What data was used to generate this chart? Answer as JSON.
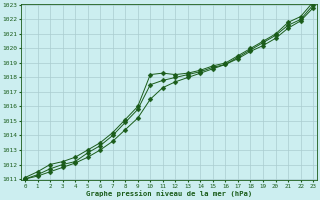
{
  "xlabel": "Graphe pression niveau de la mer (hPa)",
  "ylim": [
    1011,
    1023
  ],
  "xlim": [
    0,
    23
  ],
  "yticks": [
    1011,
    1012,
    1013,
    1014,
    1015,
    1016,
    1017,
    1018,
    1019,
    1020,
    1021,
    1022,
    1023
  ],
  "xticks": [
    0,
    1,
    2,
    3,
    4,
    5,
    6,
    7,
    8,
    9,
    10,
    11,
    12,
    13,
    14,
    15,
    16,
    17,
    18,
    19,
    20,
    21,
    22,
    23
  ],
  "bg_color": "#cceef0",
  "line_color": "#1a5c1a",
  "grid_color": "#aaccd0",
  "x": [
    0,
    1,
    2,
    3,
    4,
    5,
    6,
    7,
    8,
    9,
    10,
    11,
    12,
    13,
    14,
    15,
    16,
    17,
    18,
    19,
    20,
    21,
    22,
    23
  ],
  "line1": [
    1011.1,
    1011.5,
    1012.0,
    1012.2,
    1012.5,
    1013.0,
    1013.5,
    1014.2,
    1015.1,
    1016.0,
    1018.2,
    1018.3,
    1018.2,
    1018.3,
    1018.5,
    1018.8,
    1019.0,
    1019.5,
    1020.0,
    1020.5,
    1021.0,
    1021.8,
    1022.2,
    1023.2
  ],
  "line2": [
    1011.0,
    1011.3,
    1011.7,
    1012.0,
    1012.2,
    1012.8,
    1013.3,
    1014.0,
    1014.9,
    1015.8,
    1017.5,
    1017.8,
    1018.0,
    1018.2,
    1018.4,
    1018.7,
    1018.9,
    1019.4,
    1019.9,
    1020.4,
    1020.9,
    1021.6,
    1022.0,
    1023.0
  ],
  "line3": [
    1011.0,
    1011.2,
    1011.5,
    1011.8,
    1012.1,
    1012.5,
    1013.0,
    1013.6,
    1014.4,
    1015.2,
    1016.5,
    1017.3,
    1017.7,
    1018.0,
    1018.3,
    1018.6,
    1018.9,
    1019.3,
    1019.8,
    1020.2,
    1020.7,
    1021.4,
    1021.9,
    1022.8
  ]
}
